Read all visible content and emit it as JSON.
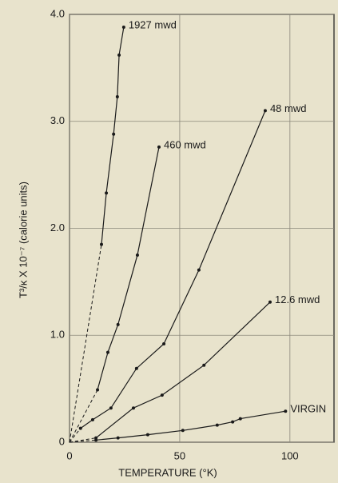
{
  "chart_data": {
    "type": "line",
    "xlabel": "TEMPERATURE (°K)",
    "ylabel": "T³/κ X 10⁻⁷ (calorie units)",
    "xlim": [
      0,
      120
    ],
    "xticks": [
      0,
      50,
      100
    ],
    "ylim": [
      0,
      4
    ],
    "yticks": [
      0,
      {
        "value": 1,
        "label": "1.0"
      },
      {
        "value": 2,
        "label": "2.0"
      },
      {
        "value": 3,
        "label": "3.0"
      },
      {
        "value": 4,
        "label": "4.0"
      }
    ],
    "grid": true,
    "color": "#1a1a1a",
    "series": [
      {
        "name": "1927 mwd",
        "x": [
          14.5,
          16.7,
          20,
          21.7,
          22.5,
          24.6
        ],
        "values": [
          1.85,
          2.33,
          2.88,
          3.23,
          3.62,
          3.88
        ]
      },
      {
        "name": "460 mwd",
        "x": [
          12.7,
          17.4,
          22,
          30.8,
          40.6
        ],
        "values": [
          0.49,
          0.84,
          1.1,
          1.75,
          2.76
        ]
      },
      {
        "name": "48 mwd",
        "x": [
          5,
          10.5,
          18.8,
          30.4,
          42.8,
          58.7,
          88.8
        ],
        "values": [
          0.13,
          0.21,
          0.32,
          0.69,
          0.92,
          1.61,
          3.1
        ]
      },
      {
        "name": "12.6 mwd",
        "x": [
          12,
          29,
          42,
          61,
          91
        ],
        "values": [
          0.04,
          0.32,
          0.44,
          0.72,
          1.31
        ]
      },
      {
        "name": "VIRGIN",
        "x": [
          12,
          22,
          35.5,
          51.4,
          67,
          74,
          77.5,
          98
        ],
        "values": [
          0.02,
          0.04,
          0.07,
          0.11,
          0.16,
          0.19,
          0.22,
          0.29
        ]
      }
    ]
  }
}
